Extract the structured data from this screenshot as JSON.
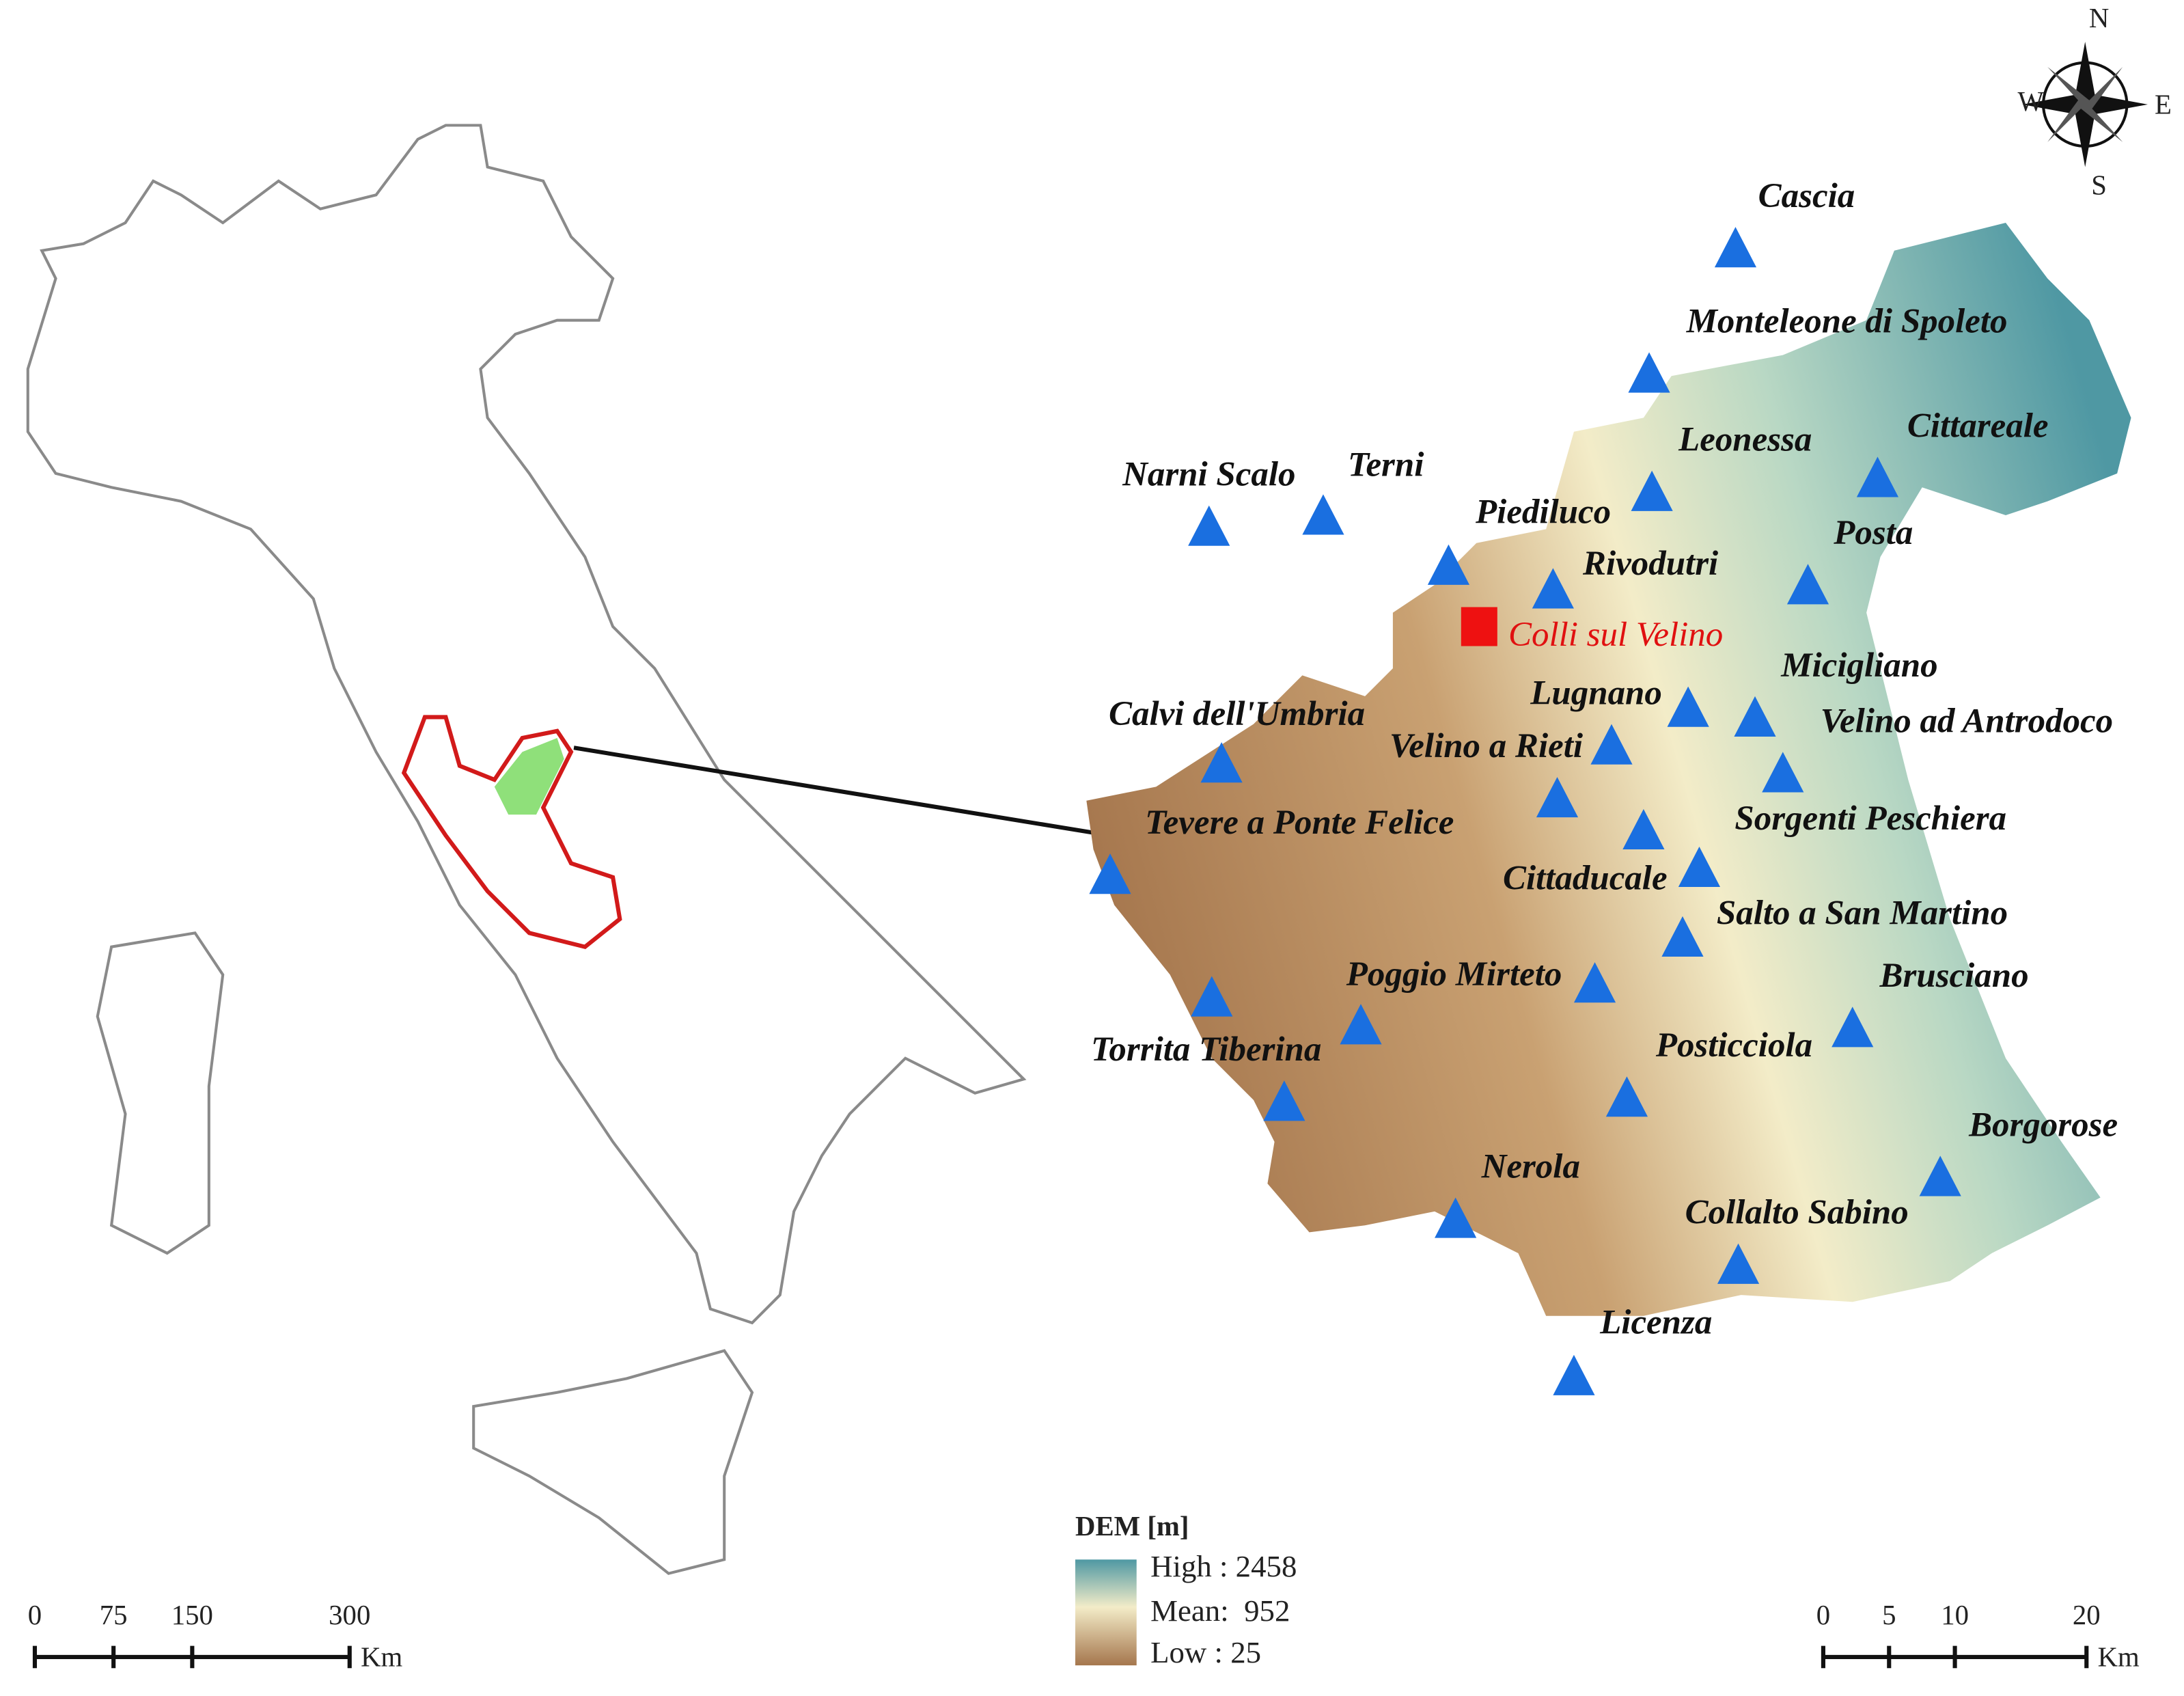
{
  "compass": {
    "n": "N",
    "w": "W",
    "e": "E",
    "s": "S"
  },
  "highlight": "Colli sul Velino",
  "stations": [
    "Cascia",
    "Monteleone di Spoleto",
    "Leonessa",
    "Cittareale",
    "Narni Scalo",
    "Terni",
    "Piediluco",
    "Rivodutri",
    "Posta",
    "Micigliano",
    "Lugnano",
    "Velino ad Antrodoco",
    "Calvi dell'Umbria",
    "Velino a Rieti",
    "Tevere a Ponte Felice",
    "Sorgenti Peschiera",
    "Cittaducale",
    "Salto a San Martino",
    "Poggio Mirteto",
    "Brusciano",
    "Torrita Tiberina",
    "Posticciola",
    "Borgorose",
    "Nerola",
    "Collalto Sabino",
    "Licenza"
  ],
  "legend": {
    "title": "DEM [m]",
    "high": "High : 2458",
    "mean": "Mean:  952",
    "low": "Low : 25"
  },
  "scale_bars": [
    {
      "ticks": [
        0,
        75,
        150,
        300
      ],
      "unit": "Km"
    },
    {
      "ticks": [
        0,
        5,
        10,
        20
      ],
      "unit": "Km"
    }
  ]
}
